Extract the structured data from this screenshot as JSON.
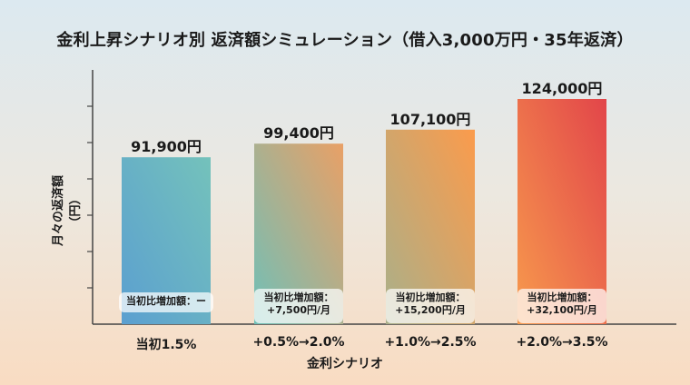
{
  "chart_data": {
    "type": "bar",
    "title": "金利上昇シナリオ別 返済額シミュレーション（借入3,000万円・35年返済）",
    "xlabel": "金利シナリオ",
    "ylabel": "月々の返済額（円）",
    "categories": [
      "当初1.5%",
      "+0.5%→2.0%",
      "+1.0%→2.5%",
      "+2.0%→3.5%"
    ],
    "values": [
      91900,
      99400,
      107100,
      124000
    ],
    "value_labels": [
      "91,900円",
      "99,400円",
      "107,100円",
      "124,000円"
    ],
    "increase_labels": [
      [
        "当初比増加額：ー"
      ],
      [
        "当初比増加額：",
        "+7,500円/月"
      ],
      [
        "当初比増加額：",
        "+15,200円/月"
      ],
      [
        "当初比増加額：",
        "+32,100円/月"
      ]
    ],
    "ylim": [
      0,
      140000
    ],
    "ytick_step": 20000,
    "ytick_labels_shown": false,
    "grid": false,
    "bar_gradients": [
      [
        "#5b9fd0",
        "#74c2bb"
      ],
      [
        "#6fc0b8",
        "#e9a066"
      ],
      [
        "#a9b08a",
        "#fb9b4c"
      ],
      [
        "#f79a4d",
        "#e2454a"
      ]
    ]
  }
}
